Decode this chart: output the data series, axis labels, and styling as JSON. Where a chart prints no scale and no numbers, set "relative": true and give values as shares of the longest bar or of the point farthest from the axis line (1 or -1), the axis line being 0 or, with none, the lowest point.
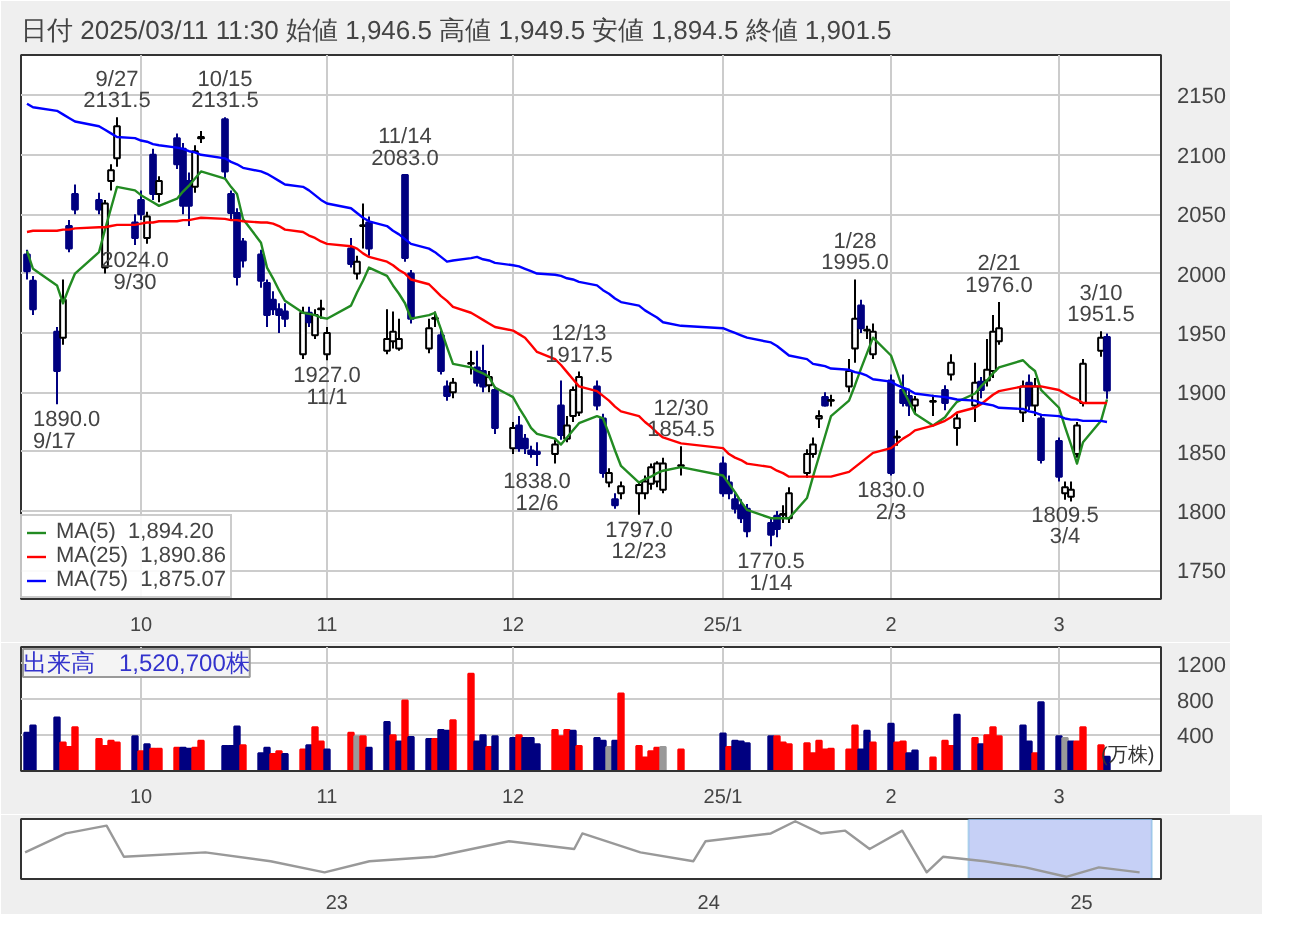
{
  "chart_data": [
    {
      "type": "candlestick",
      "title": "日付 2025/03/11 11:30 始値 1,946.5 高値 1,949.5 安値 1,894.5 終値 1,901.5",
      "x": [
        "2024-09-12",
        "2024-09-13",
        "2024-09-17",
        "2024-09-18",
        "2024-09-19",
        "2024-09-20",
        "2024-09-24",
        "2024-09-25",
        "2024-09-26",
        "2024-09-27",
        "2024-09-30",
        "2024-10-01",
        "2024-10-02",
        "2024-10-03",
        "2024-10-04",
        "2024-10-07",
        "2024-10-08",
        "2024-10-09",
        "2024-10-10",
        "2024-10-11",
        "2024-10-15",
        "2024-10-16",
        "2024-10-17",
        "2024-10-18",
        "2024-10-21",
        "2024-10-22",
        "2024-10-23",
        "2024-10-24",
        "2024-10-25",
        "2024-10-28",
        "2024-10-29",
        "2024-10-30",
        "2024-10-31",
        "2024-11-01",
        "2024-11-05",
        "2024-11-06",
        "2024-11-07",
        "2024-11-08",
        "2024-11-11",
        "2024-11-12",
        "2024-11-13",
        "2024-11-14",
        "2024-11-15",
        "2024-11-18",
        "2024-11-19",
        "2024-11-20",
        "2024-11-21",
        "2024-11-22",
        "2024-11-25",
        "2024-11-26",
        "2024-11-27",
        "2024-11-28",
        "2024-11-29",
        "2024-12-02",
        "2024-12-03",
        "2024-12-04",
        "2024-12-05",
        "2024-12-06",
        "2024-12-09",
        "2024-12-10",
        "2024-12-11",
        "2024-12-12",
        "2024-12-13",
        "2024-12-16",
        "2024-12-17",
        "2024-12-18",
        "2024-12-19",
        "2024-12-20",
        "2024-12-23",
        "2024-12-24",
        "2024-12-25",
        "2024-12-26",
        "2024-12-27",
        "2024-12-30",
        "2025-01-06",
        "2025-01-07",
        "2025-01-08",
        "2025-01-09",
        "2025-01-10",
        "2025-01-14",
        "2025-01-15",
        "2025-01-16",
        "2025-01-17",
        "2025-01-20",
        "2025-01-21",
        "2025-01-22",
        "2025-01-23",
        "2025-01-24",
        "2025-01-27",
        "2025-01-28",
        "2025-01-29",
        "2025-01-30",
        "2025-01-31",
        "2025-02-03",
        "2025-02-04",
        "2025-02-05",
        "2025-02-06",
        "2025-02-07",
        "2025-02-10",
        "2025-02-12",
        "2025-02-13",
        "2025-02-14",
        "2025-02-17",
        "2025-02-18",
        "2025-02-19",
        "2025-02-20",
        "2025-02-21",
        "2025-02-25",
        "2025-02-26",
        "2025-02-27",
        "2025-02-28",
        "2025-03-03",
        "2025-03-04",
        "2025-03-05",
        "2025-03-06",
        "2025-03-07",
        "2025-03-10",
        "2025-03-11"
      ],
      "xlim": [
        "2024-09-11",
        "2025-03-20"
      ],
      "xticks": [
        {
          "value": "2024-10-01",
          "label": "10"
        },
        {
          "value": "2024-11-01",
          "label": "11"
        },
        {
          "value": "2024-12-02",
          "label": "12"
        },
        {
          "value": "2025-01-06",
          "label": "25/1"
        },
        {
          "value": "2025-02-03",
          "label": "2"
        },
        {
          "value": "2025-03-03",
          "label": "3"
        }
      ],
      "ylim": [
        1726,
        2184
      ],
      "yticks": [
        1750,
        1800,
        1850,
        1900,
        1950,
        2000,
        2050,
        2100,
        2150
      ],
      "grid": true,
      "legend": "bottom left",
      "series": [
        {
          "type": "candlestick",
          "colors": [
            "#000080",
            "#000080",
            "#000080",
            "#ffffff",
            "#000080",
            "#000080",
            "#000080",
            "#ffffff",
            "#ffffff",
            "#ffffff",
            "#000080",
            "#000080",
            "#ffffff",
            "#000080",
            "#ffffff",
            "#000080",
            "#000080",
            "#000080",
            "#ffffff",
            "#ffffff",
            "#000080",
            "#000080",
            "#000080",
            "#000080",
            "#000080",
            "#000080",
            "#000080",
            "#000080",
            "#000080",
            "#ffffff",
            "#000080",
            "#ffffff",
            "#ffffff",
            "#ffffff",
            "#000080",
            "#ffffff",
            "#ffffff",
            "#000080",
            "#ffffff",
            "#ffffff",
            "#ffffff",
            "#000080",
            "#000080",
            "#ffffff",
            "#ffffff",
            "#000080",
            "#000080",
            "#ffffff",
            "#ffffff",
            "#000080",
            "#000080",
            "#ffffff",
            "#000080",
            "#ffffff",
            "#000080",
            "#000080",
            "#000080",
            "#000080",
            "#ffffff",
            "#000080",
            "#ffffff",
            "#ffffff",
            "#ffffff",
            "#000080",
            "#000080",
            "#ffffff",
            "#000080",
            "#ffffff",
            "#ffffff",
            "#ffffff",
            "#ffffff",
            "#ffffff",
            "#ffffff",
            "#ffffff",
            "#000080",
            "#000080",
            "#000080",
            "#000080",
            "#000080",
            "#000080",
            "#000080",
            "#ffffff",
            "#ffffff",
            "#ffffff",
            "#ffffff",
            "#ffffff",
            "#000080",
            "#ffffff",
            "#ffffff",
            "#ffffff",
            "#000080",
            "#ffffff",
            "#ffffff",
            "#000080",
            "#ffffff",
            "#000080",
            "#000080",
            "#ffffff",
            "#ffffff",
            "#000080",
            "#ffffff",
            "#ffffff",
            "#ffffff",
            "#000080",
            "#ffffff",
            "#ffffff",
            "#ffffff",
            "#ffffff",
            "#000080",
            "#ffffff",
            "#000080",
            "#000080",
            "#ffffff",
            "#ffffff",
            "#ffffff",
            "#ffffff",
            "#ffffff",
            "#000080"
          ],
          "ohlc": [
            [
              2016,
              2020,
              1995,
              2002
            ],
            [
              1994,
              1998,
              1965,
              1970
            ],
            [
              1951,
              1955,
              1890,
              1918
            ],
            [
              1946,
              1995,
              1940,
              1978
            ],
            [
              2040,
              2045,
              2018,
              2021
            ],
            [
              2067,
              2075,
              2050,
              2054
            ],
            [
              2062,
              2068,
              2050,
              2054
            ],
            [
              2005,
              2062,
              2000,
              2059
            ],
            [
              2078,
              2092,
              2070,
              2087
            ],
            [
              2097,
              2131.5,
              2090,
              2124
            ],
            [
              2043,
              2050,
              2024,
              2030
            ],
            [
              2062,
              2070,
              2045,
              2050
            ],
            [
              2030,
              2052,
              2025,
              2048
            ],
            [
              2100,
              2105,
              2062,
              2067
            ],
            [
              2067,
              2082,
              2060,
              2078
            ],
            [
              2114,
              2118,
              2088,
              2092
            ],
            [
              2105,
              2110,
              2050,
              2057
            ],
            [
              2078,
              2085,
              2040,
              2057
            ],
            [
              2073,
              2108,
              2068,
              2103
            ],
            [
              2114,
              2120,
              2110,
              2115
            ],
            [
              2130,
              2131.5,
              2080,
              2086
            ],
            [
              2067,
              2070,
              2045,
              2051
            ],
            [
              2051,
              2055,
              1990,
              1997
            ],
            [
              2027,
              2030,
              2005,
              2011
            ],
            [
              2016,
              2020,
              1988,
              1994
            ],
            [
              1992,
              1995,
              1955,
              1965
            ],
            [
              1978,
              1985,
              1965,
              1970
            ],
            [
              1970,
              1975,
              1950,
              1965
            ],
            [
              1968,
              1975,
              1955,
              1962
            ],
            [
              1932,
              1972,
              1928,
              1967
            ],
            [
              1967,
              1972,
              1955,
              1959
            ],
            [
              1948,
              1970,
              1945,
              1965
            ],
            [
              1970,
              1978,
              1962,
              1970
            ],
            [
              1932,
              1955,
              1927,
              1950
            ],
            [
              2021,
              2030,
              2005,
              2008
            ],
            [
              2000,
              2015,
              1995,
              2010
            ],
            [
              2040,
              2059,
              2021,
              2040
            ],
            [
              2043,
              2048,
              2015,
              2021
            ],
            [
              1935,
              1970,
              1932,
              1945
            ],
            [
              1943,
              1968,
              1937,
              1951
            ],
            [
              1937,
              1962,
              1935,
              1945
            ],
            [
              2083,
              2083,
              2010,
              2013
            ],
            [
              2000,
              2003,
              1958,
              1962
            ],
            [
              1937,
              1962,
              1933,
              1954
            ],
            [
              1962,
              1968,
              1955,
              1962
            ],
            [
              1948,
              1952,
              1915,
              1918
            ],
            [
              1905,
              1910,
              1893,
              1897
            ],
            [
              1900,
              1912,
              1895,
              1908
            ],
            [
              1924,
              1935,
              1915,
              1924
            ],
            [
              1921,
              1935,
              1905,
              1908
            ],
            [
              1918,
              1940,
              1900,
              1905
            ],
            [
              1906,
              1918,
              1900,
              1913
            ],
            [
              1902,
              1905,
              1865,
              1870
            ],
            [
              1853,
              1875,
              1848,
              1870
            ],
            [
              1872,
              1880,
              1850,
              1853
            ],
            [
              1861,
              1865,
              1848,
              1853
            ],
            [
              1851,
              1855,
              1845,
              1848
            ],
            [
              1850,
              1858,
              1838,
              1848
            ],
            [
              1848,
              1860,
              1840,
              1856
            ],
            [
              1889,
              1910,
              1860,
              1864
            ],
            [
              1861,
              1880,
              1858,
              1872
            ],
            [
              1880,
              1905,
              1875,
              1902
            ],
            [
              1883,
              1917.5,
              1880,
              1913
            ],
            [
              1905,
              1910,
              1885,
              1889
            ],
            [
              1878,
              1882,
              1828,
              1832
            ],
            [
              1824,
              1836,
              1820,
              1832
            ],
            [
              1810,
              1815,
              1802,
              1805
            ],
            [
              1815,
              1825,
              1810,
              1821
            ],
            [
              1815,
              1825,
              1797,
              1822
            ],
            [
              1815,
              1830,
              1810,
              1825
            ],
            [
              1823,
              1840,
              1818,
              1837
            ],
            [
              1825,
              1842,
              1820,
              1840
            ],
            [
              1818,
              1845,
              1815,
              1840
            ],
            [
              1838,
              1854.5,
              1830,
              1838
            ],
            [
              1840,
              1846,
              1812,
              1815
            ],
            [
              1824,
              1830,
              1810,
              1815
            ],
            [
              1810,
              1815,
              1798,
              1802
            ],
            [
              1805,
              1810,
              1790,
              1794
            ],
            [
              1802,
              1806,
              1778,
              1783
            ],
            [
              1790,
              1795,
              1770.5,
              1780
            ],
            [
              1796,
              1800,
              1778,
              1785
            ],
            [
              1797,
              1805,
              1790,
              1797
            ],
            [
              1794,
              1820,
              1790,
              1815
            ],
            [
              1832,
              1852,
              1828,
              1848
            ],
            [
              1848,
              1862,
              1845,
              1856
            ],
            [
              1878,
              1885,
              1870,
              1880
            ],
            [
              1896,
              1900,
              1888,
              1889
            ],
            [
              1893,
              1898,
              1888,
              1893
            ],
            [
              1905,
              1928,
              1900,
              1918
            ],
            [
              1937,
              1995,
              1925,
              1962
            ],
            [
              1973,
              1978,
              1950,
              1954
            ],
            [
              1952,
              1956,
              1945,
              1952
            ],
            [
              1932,
              1958,
              1928,
              1951
            ],
            [
              1910,
              1915,
              1830,
              1832
            ],
            [
              1862,
              1868,
              1855,
              1862
            ],
            [
              1902,
              1915,
              1888,
              1891
            ],
            [
              1897,
              1903,
              1880,
              1889
            ],
            [
              1889,
              1897,
              1882,
              1894
            ],
            [
              1892,
              1898,
              1880,
              1892
            ],
            [
              1902,
              1906,
              1885,
              1891
            ],
            [
              1915,
              1932,
              1910,
              1925
            ],
            [
              1870,
              1882,
              1855,
              1878
            ],
            [
              1889,
              1925,
              1875,
              1908
            ],
            [
              1909,
              1913,
              1895,
              1902
            ],
            [
              1910,
              1945,
              1905,
              1919
            ],
            [
              1918,
              1965,
              1912,
              1951
            ],
            [
              1943,
              1976,
              1940,
              1954
            ],
            [
              1883,
              1910,
              1875,
              1905
            ],
            [
              1908,
              1915,
              1885,
              1889
            ],
            [
              1889,
              1912,
              1880,
              1905
            ],
            [
              1878,
              1882,
              1840,
              1843
            ],
            [
              1859,
              1862,
              1825,
              1829
            ],
            [
              1815,
              1825,
              1809.5,
              1820
            ],
            [
              1812,
              1825,
              1808,
              1818
            ],
            [
              1848,
              1875,
              1845,
              1872
            ],
            [
              1891,
              1928,
              1888,
              1924
            ],
            [
              1935,
              1951.5,
              1930,
              1946
            ],
            [
              1946.5,
              1949.5,
              1894.5,
              1901.5
            ]
          ]
        },
        {
          "type": "line",
          "name": "MA(5)  1,894.20",
          "color": "#228b22",
          "values": [
            2019,
            2004,
            1990,
            1975,
            1988,
            2000,
            2018,
            2037,
            2055,
            2073,
            2070,
            2066,
            2063,
            2060,
            2057,
            2063,
            2069,
            2074,
            2080,
            2086,
            2080,
            2073,
            2067,
            2046,
            2026,
            2005,
            1996,
            1986,
            1977,
            1967,
            1966,
            1965,
            1963,
            1962,
            1973,
            1984,
            1994,
            2005,
            1998,
            1990,
            1983,
            1975,
            1962,
            1965,
            1967,
            1953,
            1938,
            1924,
            1921,
            1918,
            1916,
            1913,
            1904,
            1896,
            1887,
            1879,
            1870,
            1865,
            1861,
            1856,
            1862,
            1868,
            1874,
            1880,
            1878,
            1865,
            1851,
            1838,
            1824,
            1827,
            1829,
            1832,
            1834,
            1837,
            1830,
            1823,
            1816,
            1808,
            1801,
            1794,
            1794,
            1794,
            1794,
            1811,
            1829,
            1846,
            1863,
            1880,
            1893,
            1906,
            1920,
            1933,
            1946,
            1931,
            1917,
            1902,
            1892,
            1882,
            1872,
            1879,
            1886,
            1892,
            1899,
            1905,
            1910,
            1916,
            1921,
            1927,
            1922,
            1918,
            1902,
            1887,
            1871,
            1856,
            1840,
            1858,
            1876,
            1894
          ]
        },
        {
          "type": "line",
          "name": "MA(25)  1,890.86",
          "color": "#ff0000",
          "values": [
            2035,
            2036,
            2036,
            2037,
            2037,
            2038,
            2039,
            2039,
            2040,
            2041,
            2041,
            2042,
            2043,
            2043,
            2044,
            2044,
            2045,
            2045,
            2046,
            2047,
            2046,
            2045,
            2045,
            2044,
            2043,
            2043,
            2042,
            2040,
            2037,
            2035,
            2032,
            2030,
            2027,
            2025,
            2023,
            2021,
            2017,
            2014,
            2010,
            2007,
            2003,
            2000,
            1995,
            1991,
            1986,
            1981,
            1977,
            1972,
            1967,
            1964,
            1961,
            1958,
            1955,
            1952,
            1949,
            1946,
            1940,
            1934,
            1928,
            1923,
            1917,
            1911,
            1905,
            1901,
            1897,
            1893,
            1888,
            1884,
            1880,
            1875,
            1871,
            1866,
            1862,
            1857,
            1853,
            1848,
            1845,
            1843,
            1840,
            1837,
            1834,
            1832,
            1829,
            1829,
            1829,
            1829,
            1829,
            1829,
            1833,
            1837,
            1841,
            1845,
            1849,
            1853,
            1857,
            1861,
            1864,
            1868,
            1872,
            1876,
            1879,
            1883,
            1887,
            1890,
            1894,
            1898,
            1901,
            1905,
            1905,
            1905,
            1905,
            1902,
            1899,
            1896,
            1894,
            1891,
            1891,
            1891
          ]
        },
        {
          "type": "line",
          "name": "MA(75)  1,875.07",
          "color": "#0000ff",
          "values": [
            2143,
            2140,
            2137,
            2134,
            2131,
            2128,
            2124,
            2121,
            2118,
            2115,
            2114,
            2112,
            2111,
            2109,
            2108,
            2106,
            2105,
            2103,
            2102,
            2100,
            2097,
            2094,
            2092,
            2089,
            2086,
            2084,
            2081,
            2078,
            2075,
            2073,
            2070,
            2066,
            2062,
            2059,
            2055,
            2051,
            2047,
            2044,
            2040,
            2036,
            2033,
            2029,
            2025,
            2021,
            2018,
            2014,
            2010,
            2011,
            2013,
            2014,
            2012,
            2011,
            2009,
            2007,
            2006,
            2004,
            2002,
            2000,
            1999,
            1998,
            1996,
            1995,
            1993,
            1990,
            1986,
            1983,
            1979,
            1976,
            1973,
            1969,
            1966,
            1963,
            1959,
            1956,
            1954,
            1952,
            1950,
            1948,
            1946,
            1942,
            1939,
            1935,
            1931,
            1928,
            1924,
            1923,
            1922,
            1920,
            1919,
            1917,
            1916,
            1914,
            1911,
            1909,
            1906,
            1904,
            1902,
            1899,
            1897,
            1896,
            1895,
            1894,
            1893,
            1891,
            1890,
            1889,
            1887,
            1886,
            1884,
            1883,
            1881,
            1880,
            1878,
            1877,
            1877,
            1876,
            1876,
            1875
          ]
        }
      ],
      "annotations": [
        {
          "text": "9/27\n2131.5",
          "x": "2024-09-27",
          "y": 2131.5
        },
        {
          "text": "10/15\n2131.5",
          "x": "2024-10-15",
          "y": 2131.5
        },
        {
          "text": "2024.0\n9/30",
          "x": "2024-09-30",
          "y": 2024
        },
        {
          "text": "1890.0\n9/17",
          "x": "2024-09-17",
          "y": 1890
        },
        {
          "text": "11/14\n2083.0",
          "x": "2024-11-14",
          "y": 2083
        },
        {
          "text": "1927.0\n11/1",
          "x": "2024-11-01",
          "y": 1927
        },
        {
          "text": "12/13\n1917.5",
          "x": "2024-12-13",
          "y": 1917.5
        },
        {
          "text": "1838.0\n12/6",
          "x": "2024-12-06",
          "y": 1838
        },
        {
          "text": "12/30\n1854.5",
          "x": "2024-12-30",
          "y": 1854.5
        },
        {
          "text": "1797.0\n12/23",
          "x": "2024-12-23",
          "y": 1797
        },
        {
          "text": "1770.5\n1/14",
          "x": "2025-01-14",
          "y": 1770.5
        },
        {
          "text": "1/28\n1995.0",
          "x": "2025-01-28",
          "y": 1995
        },
        {
          "text": "1830.0\n2/3",
          "x": "2025-02-03",
          "y": 1830
        },
        {
          "text": "2/21\n1976.0",
          "x": "2025-02-21",
          "y": 1976
        },
        {
          "text": "3/10\n1951.5",
          "x": "2025-03-10",
          "y": 1951.5
        },
        {
          "text": "1809.5\n3/4",
          "x": "2025-03-04",
          "y": 1809.5
        }
      ]
    },
    {
      "type": "bar",
      "title": "出来高　1,520,700株",
      "ylabel": "(万株)",
      "x": [
        "2024-09-12",
        "2024-09-13",
        "2024-09-17",
        "2024-09-18",
        "2024-09-19",
        "2024-09-20",
        "2024-09-24",
        "2024-09-25",
        "2024-09-26",
        "2024-09-27",
        "2024-09-30",
        "2024-10-01",
        "2024-10-02",
        "2024-10-03",
        "2024-10-04",
        "2024-10-07",
        "2024-10-08",
        "2024-10-09",
        "2024-10-10",
        "2024-10-11",
        "2024-10-15",
        "2024-10-16",
        "2024-10-17",
        "2024-10-18",
        "2024-10-21",
        "2024-10-22",
        "2024-10-23",
        "2024-10-24",
        "2024-10-25",
        "2024-10-28",
        "2024-10-29",
        "2024-10-30",
        "2024-10-31",
        "2024-11-01",
        "2024-11-05",
        "2024-11-06",
        "2024-11-07",
        "2024-11-08",
        "2024-11-11",
        "2024-11-12",
        "2024-11-13",
        "2024-11-14",
        "2024-11-15",
        "2024-11-18",
        "2024-11-19",
        "2024-11-20",
        "2024-11-21",
        "2024-11-22",
        "2024-11-25",
        "2024-11-26",
        "2024-11-27",
        "2024-11-28",
        "2024-11-29",
        "2024-12-02",
        "2024-12-03",
        "2024-12-04",
        "2024-12-05",
        "2024-12-06",
        "2024-12-09",
        "2024-12-10",
        "2024-12-11",
        "2024-12-12",
        "2024-12-13",
        "2024-12-16",
        "2024-12-17",
        "2024-12-18",
        "2024-12-19",
        "2024-12-20",
        "2024-12-23",
        "2024-12-24",
        "2024-12-25",
        "2024-12-26",
        "2024-12-27",
        "2024-12-30",
        "2025-01-06",
        "2025-01-07",
        "2025-01-08",
        "2025-01-09",
        "2025-01-10",
        "2025-01-14",
        "2025-01-15",
        "2025-01-16",
        "2025-01-17",
        "2025-01-20",
        "2025-01-21",
        "2025-01-22",
        "2025-01-23",
        "2025-01-24",
        "2025-01-27",
        "2025-01-28",
        "2025-01-29",
        "2025-01-30",
        "2025-01-31",
        "2025-02-03",
        "2025-02-04",
        "2025-02-05",
        "2025-02-06",
        "2025-02-07",
        "2025-02-10",
        "2025-02-12",
        "2025-02-13",
        "2025-02-14",
        "2025-02-17",
        "2025-02-18",
        "2025-02-19",
        "2025-02-20",
        "2025-02-21",
        "2025-02-25",
        "2025-02-26",
        "2025-02-27",
        "2025-02-28",
        "2025-03-03",
        "2025-03-04",
        "2025-03-05",
        "2025-03-06",
        "2025-03-07",
        "2025-03-10",
        "2025-03-11"
      ],
      "xlim": [
        "2024-09-11",
        "2025-03-20"
      ],
      "xticks": [
        {
          "value": "2024-10-01",
          "label": "10"
        },
        {
          "value": "2024-11-01",
          "label": "11"
        },
        {
          "value": "2024-12-02",
          "label": "12"
        },
        {
          "value": "2025-01-06",
          "label": "25/1"
        },
        {
          "value": "2025-02-03",
          "label": "2"
        },
        {
          "value": "2025-03-03",
          "label": "3"
        }
      ],
      "ylim": [
        0,
        1390
      ],
      "yticks": [
        400,
        800,
        1200
      ],
      "grid": true,
      "values": [
        430,
        510,
        600,
        320,
        270,
        490,
        360,
        280,
        340,
        320,
        390,
        220,
        300,
        250,
        250,
        260,
        260,
        250,
        260,
        340,
        280,
        280,
        500,
        290,
        200,
        260,
        190,
        220,
        190,
        240,
        290,
        490,
        330,
        240,
        430,
        390,
        390,
        260,
        550,
        400,
        330,
        790,
        380,
        360,
        360,
        460,
        450,
        570,
        1090,
        330,
        400,
        270,
        390,
        370,
        400,
        370,
        370,
        300,
        460,
        390,
        460,
        450,
        280,
        370,
        340,
        270,
        340,
        870,
        280,
        150,
        220,
        260,
        270,
        240,
        420,
        270,
        340,
        330,
        310,
        390,
        390,
        320,
        300,
        310,
        200,
        340,
        240,
        250,
        240,
        510,
        240,
        450,
        320,
        530,
        320,
        330,
        200,
        230,
        150,
        340,
        280,
        630,
        370,
        300,
        400,
        490,
        390,
        510,
        330,
        200,
        770,
        390,
        370,
        330,
        330,
        490,
        290,
        160
      ],
      "colors": [
        "#000080",
        "#000080",
        "#000080",
        "#ff0000",
        "#ff0000",
        "#ff0000",
        "#ff0000",
        "#ff0000",
        "#ff0000",
        "#ff0000",
        "#000080",
        "#ff0000",
        "#000080",
        "#ff0000",
        "#ff0000",
        "#ff0000",
        "#000080",
        "#000080",
        "#ff0000",
        "#ff0000",
        "#000080",
        "#000080",
        "#000080",
        "#ff0000",
        "#000080",
        "#000080",
        "#ff0000",
        "#ff0000",
        "#000080",
        "#ff0000",
        "#000080",
        "#ff0000",
        "#ff0000",
        "#000080",
        "#ff0000",
        "#999999",
        "#ff0000",
        "#000080",
        "#000080",
        "#ff0000",
        "#000080",
        "#ff0000",
        "#000080",
        "#000080",
        "#ff0000",
        "#000080",
        "#000080",
        "#ff0000",
        "#ff0000",
        "#000080",
        "#000080",
        "#ff0000",
        "#000080",
        "#000080",
        "#ff0000",
        "#000080",
        "#000080",
        "#000080",
        "#ff0000",
        "#ff0000",
        "#ff0000",
        "#000080",
        "#ff0000",
        "#000080",
        "#000080",
        "#999999",
        "#000080",
        "#ff0000",
        "#ff0000",
        "#ff0000",
        "#ff0000",
        "#ff0000",
        "#999999",
        "#ff0000",
        "#000080",
        "#ff0000",
        "#000080",
        "#000080",
        "#000080",
        "#000080",
        "#ff0000",
        "#ff0000",
        "#ff0000",
        "#ff0000",
        "#ff0000",
        "#ff0000",
        "#ff0000",
        "#ff0000",
        "#ff0000",
        "#ff0000",
        "#000080",
        "#000080",
        "#ff0000",
        "#000080",
        "#ff0000",
        "#ff0000",
        "#000080",
        "#000080",
        "#ff0000",
        "#ff0000",
        "#ff0000",
        "#000080",
        "#ff0000",
        "#000080",
        "#ff0000",
        "#ff0000",
        "#ff0000",
        "#000080",
        "#000080",
        "#ff0000",
        "#000080",
        "#000080",
        "#999999",
        "#000080",
        "#ff0000",
        "#ff0000",
        "#ff0000",
        "#000080"
      ]
    },
    {
      "type": "line",
      "relative": true,
      "x": [
        "2022-03-01",
        "2022-04-10",
        "2022-05-20",
        "2022-06-06",
        "2022-08-25",
        "2022-10-28",
        "2022-12-20",
        "2023-02-02",
        "2023-04-07",
        "2023-06-19",
        "2023-08-22",
        "2023-08-30",
        "2023-10-26",
        "2023-12-17",
        "2023-12-29",
        "2024-03-02",
        "2024-03-26",
        "2024-04-20",
        "2024-05-14",
        "2024-06-07",
        "2024-07-09",
        "2024-08-02",
        "2024-08-18",
        "2024-09-28",
        "2024-11-07",
        "2024-12-17",
        "2025-01-18",
        "2025-02-27"
      ],
      "xlim": [
        "2022-02-25",
        "2025-03-20"
      ],
      "xticks": [
        {
          "value": "2023-01-01",
          "label": "23"
        },
        {
          "value": "2024-01-01",
          "label": "24"
        },
        {
          "value": "2025-01-01",
          "label": "25"
        }
      ],
      "series": [
        {
          "color": "#999999",
          "values": [
            0.44,
            0.78,
            0.92,
            0.36,
            0.44,
            0.28,
            0.08,
            0.28,
            0.36,
            0.64,
            0.5,
            0.78,
            0.44,
            0.28,
            0.64,
            0.78,
            1,
            0.78,
            0.83,
            0.5,
            0.83,
            0.08,
            0.36,
            0.28,
            0.17,
            0,
            0.17,
            0.08
          ]
        }
      ],
      "bands": [
        {
          "axis": "x",
          "from": "2024-09-12",
          "to": "2025-03-11",
          "color": "#b8c4f4"
        }
      ]
    }
  ]
}
